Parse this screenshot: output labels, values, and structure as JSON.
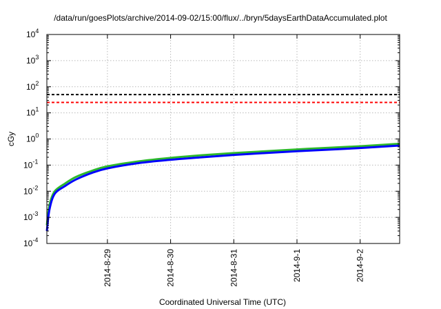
{
  "chart_data": {
    "type": "line",
    "title": "/data/run/goesPlots/archive/2014-09-02/15:00/flux/../bryn/5daysEarthDataAccumulated.plot",
    "xlabel": "Coordinated Universal Time (UTC)",
    "ylabel": "cGy",
    "yscale": "log",
    "ylim": [
      0.0001,
      10000
    ],
    "xlim": [
      "2014-08-28 01:00",
      "2014-09-02 15:00"
    ],
    "x_ticks": [
      "2014-8-29",
      "2014-8-30",
      "2014-8-31",
      "2014-9-1",
      "2014-9-2"
    ],
    "y_ticks": [
      {
        "base": "10",
        "exp": "-4"
      },
      {
        "base": "10",
        "exp": "-3"
      },
      {
        "base": "10",
        "exp": "-2"
      },
      {
        "base": "10",
        "exp": "-1"
      },
      {
        "base": "10",
        "exp": "0"
      },
      {
        "base": "10",
        "exp": "1"
      },
      {
        "base": "10",
        "exp": "2"
      },
      {
        "base": "10",
        "exp": "3"
      },
      {
        "base": "10",
        "exp": "4"
      }
    ],
    "grid": true,
    "thresholds": [
      {
        "value": 50,
        "color": "#000000",
        "style": "dashed"
      },
      {
        "value": 25,
        "color": "#ff0000",
        "style": "dashed"
      }
    ],
    "series": [
      {
        "color": "#2db82d",
        "x": [
          "2014-08-28 01:00",
          "2014-08-28 02:00",
          "2014-08-28 04:00",
          "2014-08-28 08:00",
          "2014-08-28 12:00",
          "2014-08-28 18:00",
          "2014-08-29 00:00",
          "2014-08-29 12:00",
          "2014-08-30 00:00",
          "2014-08-30 12:00",
          "2014-08-31 00:00",
          "2014-08-31 12:00",
          "2014-09-01 00:00",
          "2014-09-01 12:00",
          "2014-09-02 00:00",
          "2014-09-02 15:00"
        ],
        "y": [
          0.0005,
          0.003,
          0.01,
          0.02,
          0.035,
          0.06,
          0.09,
          0.14,
          0.19,
          0.24,
          0.29,
          0.34,
          0.4,
          0.46,
          0.53,
          0.66
        ]
      },
      {
        "color": "#0000ff",
        "x": [
          "2014-08-28 01:00",
          "2014-08-28 02:00",
          "2014-08-28 04:00",
          "2014-08-28 08:00",
          "2014-08-28 12:00",
          "2014-08-28 18:00",
          "2014-08-29 00:00",
          "2014-08-29 12:00",
          "2014-08-30 00:00",
          "2014-08-30 12:00",
          "2014-08-31 00:00",
          "2014-08-31 12:00",
          "2014-09-01 00:00",
          "2014-09-01 12:00",
          "2014-09-02 00:00",
          "2014-09-02 15:00"
        ],
        "y": [
          0.0003,
          0.002,
          0.008,
          0.016,
          0.028,
          0.05,
          0.075,
          0.12,
          0.16,
          0.2,
          0.245,
          0.29,
          0.34,
          0.39,
          0.45,
          0.56
        ]
      }
    ]
  }
}
